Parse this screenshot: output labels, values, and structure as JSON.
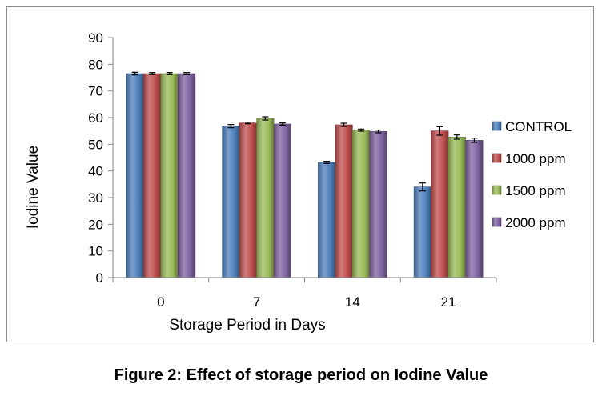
{
  "caption": "Figure 2: Effect of storage period on Iodine Value",
  "chart_data": {
    "type": "bar",
    "xlabel": "Storage Period in Days",
    "ylabel": "Iodine Value",
    "categories": [
      "0",
      "7",
      "14",
      "21"
    ],
    "ylim": [
      0,
      90
    ],
    "yticks": [
      0,
      10,
      20,
      30,
      40,
      50,
      60,
      70,
      80,
      90
    ],
    "grid": false,
    "legend_position": "right",
    "error_bars": true,
    "series": [
      {
        "name": "CONTROL",
        "color": "#4f81bd",
        "values": [
          76.5,
          56.8,
          43.2,
          34.0
        ],
        "errors": [
          0.5,
          0.6,
          0.4,
          1.5
        ]
      },
      {
        "name": "1000 ppm",
        "color": "#c0504d",
        "values": [
          76.5,
          58.0,
          57.3,
          55.0
        ],
        "errors": [
          0.4,
          0.3,
          0.6,
          1.6
        ]
      },
      {
        "name": "1500 ppm",
        "color": "#9bbb59",
        "values": [
          76.5,
          59.7,
          55.3,
          52.7
        ],
        "errors": [
          0.4,
          0.6,
          0.4,
          0.8
        ]
      },
      {
        "name": "2000 ppm",
        "color": "#8064a2",
        "values": [
          76.5,
          57.6,
          54.8,
          51.5
        ],
        "errors": [
          0.4,
          0.4,
          0.5,
          0.8
        ]
      }
    ]
  }
}
